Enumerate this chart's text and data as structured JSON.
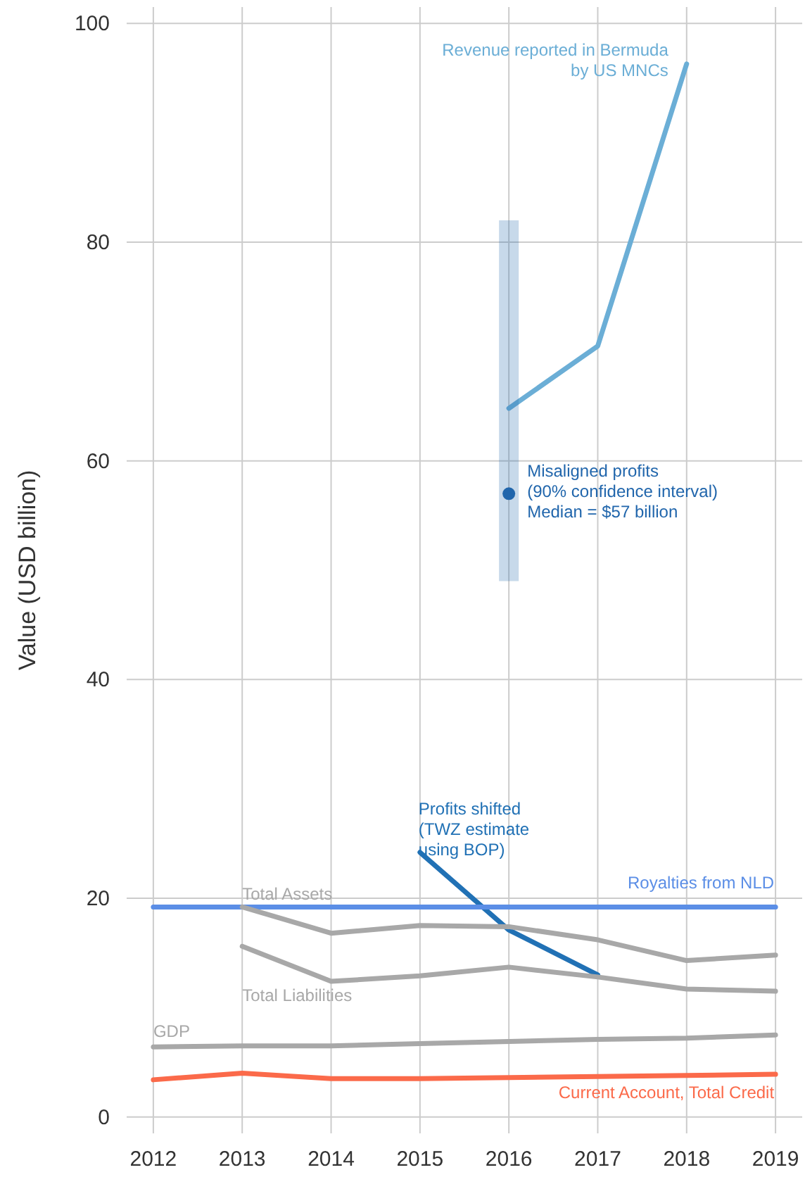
{
  "chart_data": {
    "type": "line",
    "ylabel": "Value (USD billion)",
    "xlim": [
      2011.7,
      2019.3
    ],
    "xticks": [
      2012,
      2013,
      2014,
      2015,
      2016,
      2017,
      2018,
      2019
    ],
    "ylim": [
      -1.5,
      101.5
    ],
    "yticks": [
      0,
      20,
      40,
      60,
      80,
      100
    ],
    "grid": true,
    "series": [
      {
        "name": "Revenue reported in Bermuda\nby US MNCs",
        "color": "#6baed6",
        "x": [
          2016,
          2017,
          2018
        ],
        "values": [
          64.8,
          70.5,
          96.3
        ]
      },
      {
        "name": "Misaligned profits\n(90% confidence interval)\nMedian = $57 billion",
        "type": "scatter",
        "color": "#2166ac",
        "x": [
          2016
        ],
        "values": [
          57
        ],
        "errors": [
          [
            49,
            82
          ]
        ]
      },
      {
        "name": "Profits shifted\n(TWZ estimate\nusing BOP)",
        "color": "#2171b5",
        "x": [
          2015,
          2016,
          2017
        ],
        "values": [
          24.2,
          17.1,
          13.0
        ]
      },
      {
        "name": "Royalties from NLD",
        "color": "#5b8ee6",
        "x": [
          2012,
          2013,
          2014,
          2015,
          2016,
          2017,
          2018,
          2019
        ],
        "values": [
          19.2,
          19.2,
          19.2,
          19.2,
          19.2,
          19.2,
          19.2,
          19.2
        ]
      },
      {
        "name": "Total Assets",
        "color": "#a8a8a8",
        "x": [
          2013,
          2014,
          2015,
          2016,
          2017,
          2018,
          2019
        ],
        "values": [
          19.2,
          16.8,
          17.5,
          17.4,
          16.2,
          14.3,
          14.8
        ]
      },
      {
        "name": "Total Liabilities",
        "color": "#a8a8a8",
        "x": [
          2013,
          2014,
          2015,
          2016,
          2017,
          2018,
          2019
        ],
        "values": [
          15.6,
          12.4,
          12.9,
          13.7,
          12.8,
          11.7,
          11.5
        ]
      },
      {
        "name": "GDP",
        "color": "#a8a8a8",
        "x": [
          2012,
          2013,
          2014,
          2015,
          2016,
          2017,
          2018,
          2019
        ],
        "values": [
          6.4,
          6.5,
          6.5,
          6.7,
          6.9,
          7.1,
          7.2,
          7.5
        ]
      },
      {
        "name": "Current Account, Total Credit",
        "color": "#fb6a4a",
        "x": [
          2012,
          2013,
          2014,
          2015,
          2016,
          2017,
          2018,
          2019
        ],
        "values": [
          3.4,
          4.0,
          3.5,
          3.5,
          3.6,
          3.7,
          3.8,
          3.9
        ]
      }
    ]
  }
}
